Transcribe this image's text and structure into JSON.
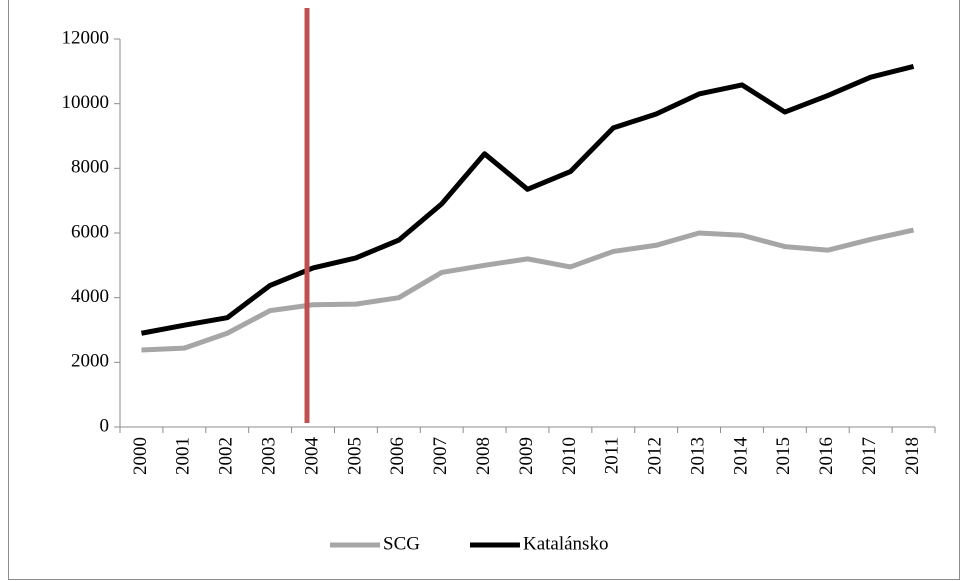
{
  "chart_data": {
    "type": "line",
    "categories": [
      "2000",
      "2001",
      "2002",
      "2003",
      "2004",
      "2005",
      "2006",
      "2007",
      "2008",
      "2009",
      "2010",
      "2011",
      "2012",
      "2013",
      "2014",
      "2015",
      "2016",
      "2017",
      "2018"
    ],
    "series": [
      {
        "name": "SCG",
        "color": "#a6a6a6",
        "values": [
          2380,
          2440,
          2900,
          3600,
          3780,
          3800,
          4000,
          4780,
          5000,
          5200,
          4950,
          5430,
          5620,
          6000,
          5930,
          5580,
          5470,
          5800,
          6090
        ]
      },
      {
        "name": "Katalánsko",
        "color": "#000000",
        "values": [
          2900,
          3150,
          3380,
          4380,
          4920,
          5230,
          5780,
          6900,
          8450,
          7350,
          7900,
          9250,
          9680,
          10300,
          10580,
          9740,
          10250,
          10820,
          11150
        ]
      }
    ],
    "ylim": [
      0,
      12000
    ],
    "yticks": [
      0,
      2000,
      4000,
      6000,
      8000,
      10000,
      12000
    ],
    "grid": false,
    "legend": "bottom"
  }
}
